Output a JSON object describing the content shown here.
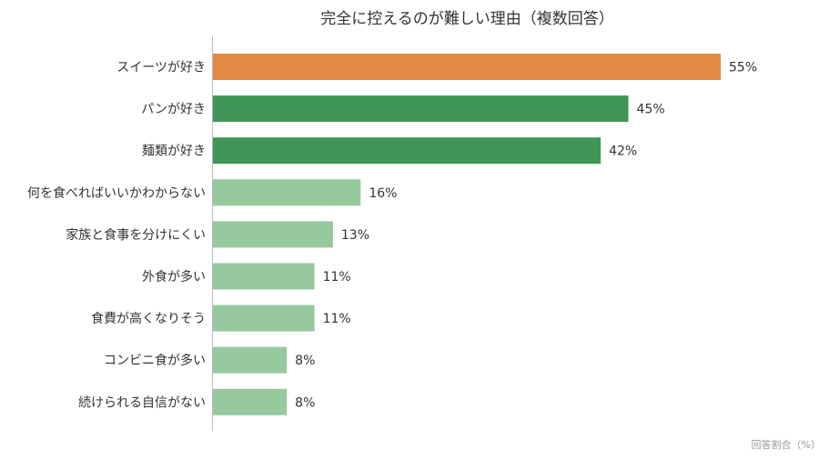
{
  "chart_data": {
    "type": "bar",
    "orientation": "horizontal",
    "title": "完全に控えるのが難しい理由（複数回答）",
    "xlabel": "回答割合（%）",
    "ylabel": "",
    "categories": [
      "スイーツが好き",
      "パンが好き",
      "麺類が好き",
      "何を食べればいいかわからない",
      "家族と食事を分けにくい",
      "外食が多い",
      "食費が高くなりそう",
      "コンビニ食が多い",
      "続けられる自信がない"
    ],
    "values": [
      55,
      45,
      42,
      16,
      13,
      11,
      11,
      8,
      8
    ],
    "value_labels": [
      "55%",
      "45%",
      "42%",
      "16%",
      "13%",
      "11%",
      "11%",
      "8%",
      "8%"
    ],
    "xlim": [
      0,
      55
    ],
    "grid": false,
    "legend": "none",
    "colors": [
      "#e08a42",
      "#3f9656",
      "#3f9656",
      "#97c99f",
      "#97c99f",
      "#97c99f",
      "#97c99f",
      "#97c99f",
      "#97c99f"
    ]
  }
}
